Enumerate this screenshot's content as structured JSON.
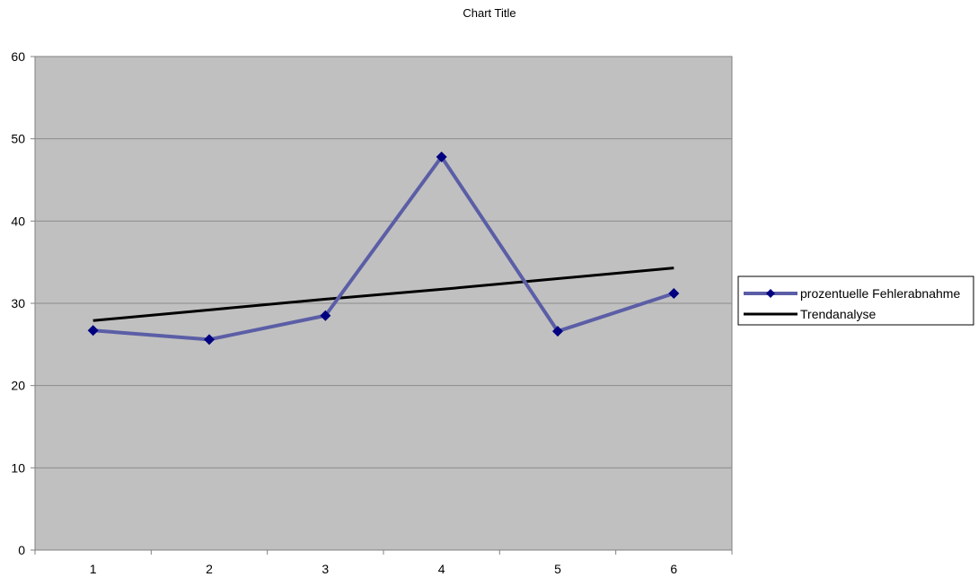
{
  "chart_data": {
    "type": "line",
    "title": "Chart Title",
    "xlabel": "",
    "ylabel": "",
    "categories": [
      "1",
      "2",
      "3",
      "4",
      "5",
      "6"
    ],
    "ylim": [
      0,
      60
    ],
    "yticks": [
      "0",
      "10",
      "20",
      "30",
      "40",
      "50",
      "60"
    ],
    "grid": true,
    "legend_position": "right",
    "plot_background": "#c0c0c0",
    "series": [
      {
        "name": "prozentuelle Fehlerabnahme",
        "values": [
          26.7,
          25.6,
          28.5,
          47.8,
          26.6,
          31.2
        ],
        "color": "#5b5ea6",
        "marker": "diamond",
        "marker_color": "#000080"
      },
      {
        "name": "Trendanalyse",
        "values": [
          27.9,
          29.2,
          30.5,
          31.7,
          33.0,
          34.3
        ],
        "color": "#000000",
        "marker": "none"
      }
    ]
  }
}
